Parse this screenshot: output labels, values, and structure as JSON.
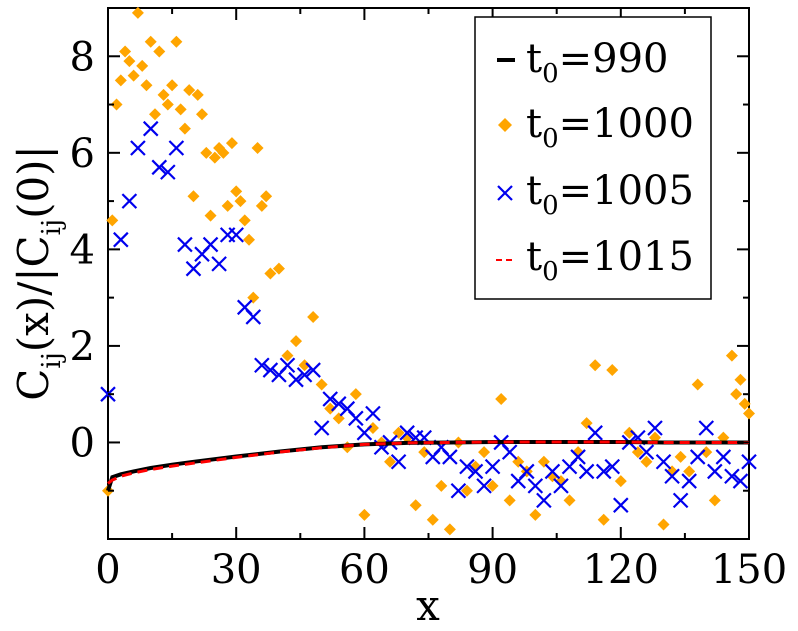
{
  "chart_data": {
    "type": "scatter",
    "title": "",
    "xlabel": "x",
    "ylabel_main": "C",
    "ylabel_sub": "ij",
    "ylabel_mid": "(x)/|C",
    "ylabel_sub2": "ij",
    "ylabel_tail": "(0)|",
    "xlim": [
      0,
      150
    ],
    "ylim": [
      -2,
      9
    ],
    "xticks": [
      0,
      30,
      60,
      90,
      120,
      150
    ],
    "yticks": [
      0,
      2,
      4,
      6,
      8
    ],
    "xtick_labels": [
      "0",
      "30",
      "60",
      "90",
      "120",
      "150"
    ],
    "ytick_labels": [
      "0",
      "2",
      "4",
      "6",
      "8"
    ],
    "legend_position": "top-right",
    "series": [
      {
        "name": "t0=990",
        "label_main": "t",
        "label_sub": "0",
        "label_value": "=990",
        "style": "line",
        "color": "#000000",
        "x": [
          0,
          1,
          3,
          6,
          10,
          15,
          20,
          30,
          40,
          50,
          60,
          70,
          80,
          90,
          100,
          110,
          120,
          130,
          140,
          150
        ],
        "values": [
          -1.0,
          -0.72,
          -0.66,
          -0.6,
          -0.53,
          -0.46,
          -0.4,
          -0.29,
          -0.19,
          -0.1,
          -0.04,
          -0.01,
          0.0,
          0.01,
          0.01,
          0.01,
          0.01,
          0.0,
          0.0,
          0.0
        ]
      },
      {
        "name": "t0=1000",
        "label_main": "t",
        "label_sub": "0",
        "label_value": "=1000",
        "style": "diamond",
        "color": "#FFA500",
        "x": [
          0,
          1,
          2,
          3,
          4,
          5,
          6,
          7,
          8,
          9,
          10,
          11,
          12,
          13,
          14,
          15,
          16,
          17,
          18,
          19,
          20,
          21,
          22,
          23,
          24,
          25,
          26,
          27,
          28,
          29,
          30,
          31,
          32,
          33,
          34,
          35,
          36,
          37,
          38,
          40,
          42,
          44,
          46,
          48,
          50,
          52,
          54,
          56,
          58,
          60,
          62,
          64,
          66,
          68,
          70,
          72,
          74,
          76,
          78,
          80,
          82,
          84,
          86,
          88,
          90,
          92,
          94,
          96,
          98,
          100,
          102,
          104,
          106,
          108,
          110,
          112,
          114,
          116,
          118,
          120,
          122,
          124,
          126,
          128,
          130,
          132,
          134,
          136,
          138,
          140,
          142,
          144,
          146,
          147,
          148,
          149,
          150
        ],
        "values": [
          -1.0,
          4.6,
          7.0,
          7.5,
          8.1,
          7.9,
          7.6,
          8.9,
          7.8,
          7.4,
          8.3,
          6.8,
          8.1,
          7.2,
          7.0,
          7.4,
          8.3,
          6.9,
          6.5,
          7.3,
          5.1,
          7.2,
          6.8,
          6.0,
          4.7,
          5.9,
          6.1,
          6.0,
          4.9,
          6.2,
          5.2,
          5.0,
          4.6,
          4.2,
          3.0,
          6.1,
          4.9,
          5.1,
          3.5,
          3.6,
          1.8,
          2.1,
          1.6,
          2.6,
          1.2,
          0.7,
          0.5,
          -0.1,
          1.0,
          -1.5,
          0.3,
          0.0,
          -0.4,
          0.2,
          0.1,
          -1.3,
          -0.2,
          -1.6,
          -0.9,
          -1.8,
          0.0,
          -1.0,
          -0.5,
          -0.2,
          -0.9,
          0.9,
          -1.2,
          -0.4,
          -0.6,
          -1.5,
          -0.4,
          -0.7,
          -0.8,
          -1.2,
          -0.2,
          0.4,
          1.6,
          -1.6,
          1.5,
          -0.8,
          0.2,
          -0.2,
          -0.4,
          0.1,
          -1.7,
          -0.6,
          -0.3,
          -0.6,
          1.2,
          -0.2,
          -1.2,
          0.1,
          1.8,
          1.0,
          1.3,
          0.8,
          0.6
        ]
      },
      {
        "name": "t0=1005",
        "label_main": "t",
        "label_sub": "0",
        "label_value": "=1005",
        "style": "cross",
        "color": "#0000EE",
        "x": [
          0,
          3,
          5,
          7,
          10,
          12,
          14,
          16,
          18,
          20,
          22,
          24,
          26,
          28,
          30,
          32,
          34,
          36,
          38,
          40,
          42,
          44,
          46,
          48,
          50,
          52,
          54,
          56,
          58,
          60,
          62,
          64,
          66,
          68,
          70,
          72,
          74,
          76,
          78,
          80,
          82,
          84,
          86,
          88,
          90,
          92,
          94,
          96,
          98,
          100,
          102,
          104,
          106,
          108,
          110,
          112,
          114,
          116,
          118,
          120,
          122,
          124,
          126,
          128,
          130,
          132,
          134,
          136,
          138,
          140,
          142,
          144,
          146,
          148,
          150
        ],
        "values": [
          1.0,
          4.2,
          5.0,
          6.1,
          6.5,
          5.7,
          5.6,
          6.1,
          4.1,
          3.6,
          3.9,
          4.1,
          3.7,
          4.3,
          4.3,
          2.8,
          2.6,
          1.6,
          1.5,
          1.4,
          1.6,
          1.3,
          1.4,
          1.5,
          0.3,
          0.9,
          0.8,
          0.7,
          0.5,
          0.2,
          0.6,
          -0.1,
          0.0,
          -0.4,
          0.2,
          0.1,
          0.1,
          -0.3,
          -0.1,
          -0.3,
          -1.0,
          -0.5,
          -0.6,
          -0.9,
          -0.5,
          0.0,
          -0.2,
          -0.8,
          -0.6,
          -0.9,
          -1.2,
          -0.6,
          -0.9,
          -0.5,
          -0.3,
          -0.6,
          0.2,
          -0.6,
          -0.5,
          -1.3,
          0.0,
          0.1,
          -0.2,
          0.3,
          -0.4,
          -0.7,
          -1.2,
          -0.8,
          -0.3,
          0.3,
          -0.6,
          -0.3,
          -0.7,
          -0.8,
          -0.4
        ]
      },
      {
        "name": "t0=1015",
        "label_main": "t",
        "label_sub": "0",
        "label_value": "=1015",
        "style": "dashed",
        "color": "#FF0000",
        "x": [
          0,
          1,
          3,
          6,
          10,
          15,
          20,
          30,
          40,
          50,
          60,
          70,
          80,
          90,
          100,
          110,
          120,
          130,
          140,
          150
        ],
        "values": [
          -0.85,
          -0.78,
          -0.7,
          -0.63,
          -0.56,
          -0.49,
          -0.43,
          -0.31,
          -0.2,
          -0.11,
          -0.04,
          -0.01,
          0.0,
          0.01,
          0.01,
          0.01,
          0.01,
          0.0,
          0.0,
          0.0
        ]
      }
    ]
  }
}
